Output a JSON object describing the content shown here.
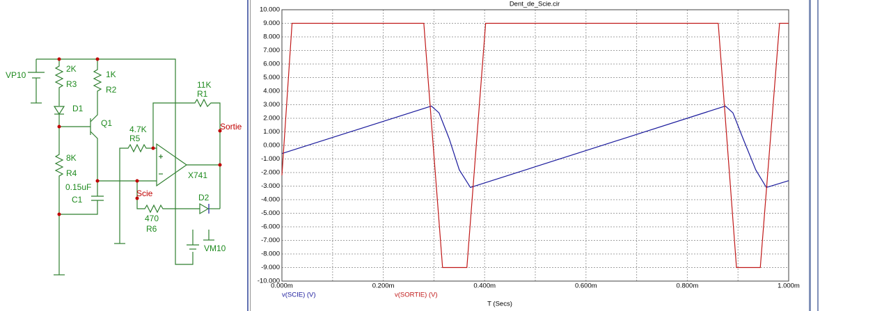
{
  "schematic": {
    "labels": [
      "VP10",
      "2K",
      "R3",
      "1K",
      "R2",
      "D1",
      "Q1",
      "11K",
      "R1",
      "Sortie",
      "4.7K",
      "R5",
      "8K",
      "R4",
      "0.15uF",
      "C1",
      "Scie",
      "X741",
      "D2",
      "470",
      "R6",
      "VM10"
    ]
  },
  "chart_data": {
    "type": "line",
    "title": "Dent_de_Scie.cir",
    "x_label": "T (Secs)",
    "xlim": [
      0,
      1
    ],
    "ylim": [
      -10,
      10
    ],
    "xticks": [
      {
        "value": 0,
        "label": "0.000m"
      },
      {
        "value": 0.2,
        "label": "0.200m"
      },
      {
        "value": 0.4,
        "label": "0.400m"
      },
      {
        "value": 0.6,
        "label": "0.600m"
      },
      {
        "value": 0.8,
        "label": "0.800m"
      },
      {
        "value": 1,
        "label": "1.000m"
      }
    ],
    "xminorticks": [
      0.1,
      0.3,
      0.5,
      0.7,
      0.9
    ],
    "yticks": [
      {
        "value": 10,
        "label": "10.000"
      },
      {
        "value": 9,
        "label": "9.000"
      },
      {
        "value": 8,
        "label": "8.000"
      },
      {
        "value": 7,
        "label": "7.000"
      },
      {
        "value": 6,
        "label": "6.000"
      },
      {
        "value": 5,
        "label": "5.000"
      },
      {
        "value": 4,
        "label": "4.000"
      },
      {
        "value": 3,
        "label": "3.000"
      },
      {
        "value": 2,
        "label": "2.000"
      },
      {
        "value": 1,
        "label": "1.000"
      },
      {
        "value": 0,
        "label": "0.000"
      },
      {
        "value": -1,
        "label": "-1.000"
      },
      {
        "value": -2,
        "label": "-2.000"
      },
      {
        "value": -3,
        "label": "-3.000"
      },
      {
        "value": -4,
        "label": "-4.000"
      },
      {
        "value": -5,
        "label": "-5.000"
      },
      {
        "value": -6,
        "label": "-6.000"
      },
      {
        "value": -7,
        "label": "-7.000"
      },
      {
        "value": -8,
        "label": "-8.000"
      },
      {
        "value": -9,
        "label": "-9.000"
      },
      {
        "value": -10,
        "label": "-10.000"
      }
    ],
    "grid": true,
    "series": [
      {
        "name": "v(SCIE) (V)",
        "color": "#1a1a9c",
        "x": [
          0,
          0.295,
          0.31,
          0.33,
          0.35,
          0.372,
          0.875,
          0.89,
          0.91,
          0.935,
          0.956,
          1.0
        ],
        "values": [
          -0.6,
          2.9,
          2.4,
          0.5,
          -1.8,
          -3.1,
          2.9,
          2.4,
          0.5,
          -1.8,
          -3.1,
          -2.6
        ]
      },
      {
        "name": "v(SORTIE) (V)",
        "color": "#c01818",
        "x": [
          0,
          0.02,
          0.28,
          0.317,
          0.365,
          0.402,
          0.861,
          0.897,
          0.944,
          0.982,
          1.0
        ],
        "values": [
          -2.2,
          9,
          9,
          -9,
          -9,
          9,
          9,
          -9,
          -9,
          9,
          9
        ]
      }
    ]
  }
}
